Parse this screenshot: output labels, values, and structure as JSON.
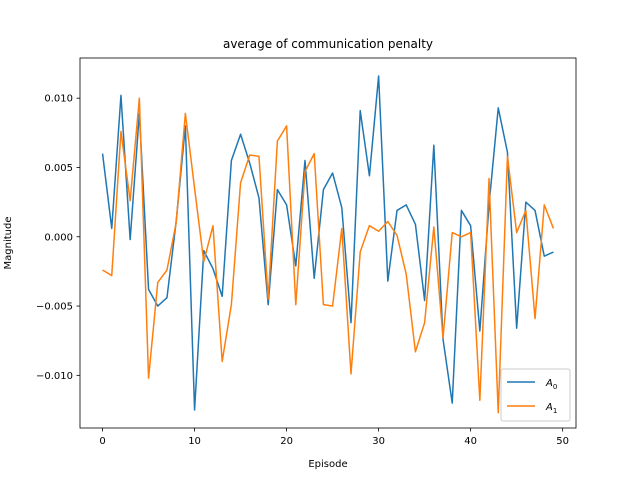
{
  "chart_data": {
    "type": "line",
    "title": "average of communication penalty",
    "xlabel": "Episode",
    "ylabel": "Magnitude",
    "xlim": [
      -2.45,
      51.45
    ],
    "ylim": [
      -0.0138,
      0.0129
    ],
    "xticks": [
      0,
      10,
      20,
      30,
      40,
      50
    ],
    "xtick_labels": [
      "0",
      "10",
      "20",
      "30",
      "40",
      "50"
    ],
    "yticks": [
      -0.01,
      -0.005,
      0.0,
      0.005,
      0.01
    ],
    "ytick_labels": [
      "−0.010",
      "−0.005",
      "0.000",
      "0.005",
      "0.010"
    ],
    "grid": false,
    "legend_position": "lower-right",
    "x": [
      0,
      1,
      2,
      3,
      4,
      5,
      6,
      7,
      8,
      9,
      10,
      11,
      12,
      13,
      14,
      15,
      16,
      17,
      18,
      19,
      20,
      21,
      22,
      23,
      24,
      25,
      26,
      27,
      28,
      29,
      30,
      31,
      32,
      33,
      34,
      35,
      36,
      37,
      38,
      39,
      40,
      41,
      42,
      43,
      44,
      45,
      46,
      47,
      48,
      49
    ],
    "series": [
      {
        "name": "A",
        "subscript": "0",
        "color": "#1f77b4",
        "values": [
          0.006,
          0.0006,
          0.0102,
          -0.0002,
          0.0089,
          -0.0038,
          -0.005,
          -0.0044,
          0.0011,
          0.008,
          -0.0125,
          -0.001,
          -0.0023,
          -0.0043,
          0.0055,
          0.0074,
          0.0053,
          0.0028,
          -0.0049,
          0.0034,
          0.0023,
          -0.0021,
          0.0055,
          -0.003,
          0.0034,
          0.0046,
          0.0021,
          -0.0062,
          0.0091,
          0.0044,
          0.0116,
          -0.0032,
          0.0019,
          0.0023,
          0.0009,
          -0.0046,
          0.0066,
          -0.0074,
          -0.012,
          0.0019,
          0.0008,
          -0.0068,
          0.0023,
          0.0093,
          0.0061,
          -0.0066,
          0.0025,
          0.0019,
          -0.0014,
          -0.0011
        ]
      },
      {
        "name": "A",
        "subscript": "1",
        "color": "#ff7f0e",
        "values": [
          -0.0024,
          -0.0028,
          0.0076,
          0.0026,
          0.01,
          -0.0102,
          -0.0033,
          -0.0024,
          0.001,
          0.0089,
          0.0035,
          -0.0018,
          0.0008,
          -0.009,
          -0.0049,
          0.0039,
          0.0059,
          0.0058,
          -0.0045,
          0.0069,
          0.008,
          -0.0049,
          0.0047,
          0.006,
          -0.0049,
          -0.005,
          0.0006,
          -0.0099,
          -0.0011,
          0.0008,
          0.0004,
          0.0011,
          0.0001,
          -0.0027,
          -0.0083,
          -0.0062,
          0.0007,
          -0.0073,
          0.0003,
          0.0,
          0.0003,
          -0.0118,
          0.0042,
          -0.0127,
          0.0058,
          0.0003,
          0.0019,
          -0.0059,
          0.0023,
          0.0006
        ]
      }
    ]
  }
}
